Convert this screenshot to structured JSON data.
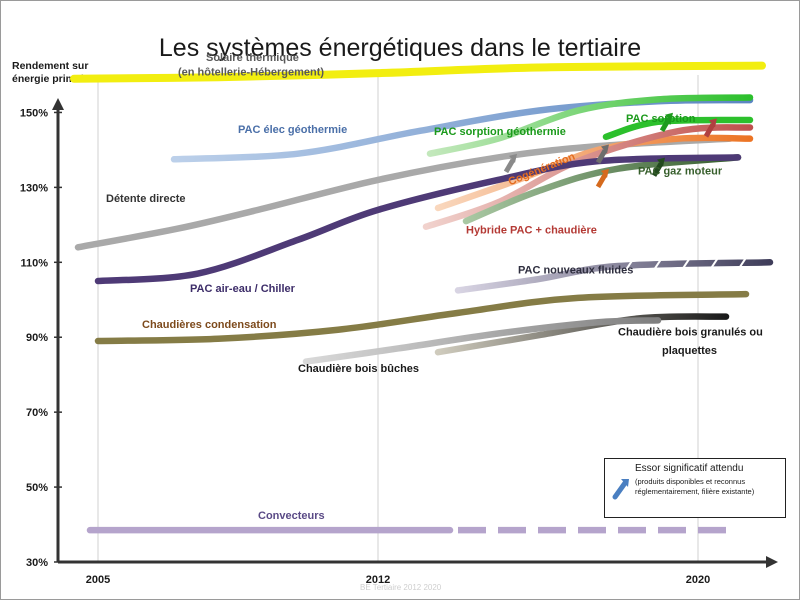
{
  "title": "Les systèmes énergétiques dans le tertiaire",
  "footer": "BE Tertiaire 2012 2020",
  "legend": {
    "title": "Essor significatif attendu",
    "subtitle": "(produits disponibles et reconnus réglementairement, filière existante)",
    "icon": "arrow-up-right-icon",
    "color": "#4a7fc1"
  },
  "chart_data": {
    "type": "line",
    "title": "Les systèmes énergétiques dans le tertiaire",
    "ylabel": "Rendement sur énergie primaire",
    "xlabel": "",
    "xlim": [
      2004,
      2021.8
    ],
    "ylim": [
      30,
      160
    ],
    "yticks": [
      30,
      50,
      70,
      90,
      110,
      130,
      150
    ],
    "ytick_labels": [
      "30%",
      "50%",
      "70%",
      "90%",
      "110%",
      "130%",
      "150%"
    ],
    "xticks": [
      2005,
      2012,
      2020
    ],
    "xtick_labels": [
      "2005",
      "2012",
      "2020"
    ],
    "grid": "vertical",
    "series": [
      {
        "name": "Solaire thermique (en hôtellerie-Hébergement)",
        "color": "#f2ee10",
        "x": [
          2004.4,
          2008,
          2012,
          2016,
          2021.6
        ],
        "y": [
          159,
          159.4,
          160.5,
          162,
          162.5
        ]
      },
      {
        "name": "PAC élec géothermie",
        "color": "#bcd0ea",
        "color2": "#5b86c2",
        "x": [
          2006.9,
          2010,
          2013,
          2016,
          2019,
          2021.3
        ],
        "y": [
          137.5,
          139,
          145,
          150.5,
          153,
          153.3
        ]
      },
      {
        "name": "PAC sorption géothermie",
        "color": "#c3e8bc",
        "color2": "#2cc02c",
        "x": [
          2013.3,
          2015,
          2017,
          2019,
          2021.3
        ],
        "y": [
          139,
          143,
          150.5,
          153.5,
          154
        ]
      },
      {
        "name": "PAC sorption",
        "color": "#2cc02c",
        "x": [
          2017.7,
          2019,
          2021.3
        ],
        "y": [
          143.5,
          147.5,
          148
        ]
      },
      {
        "name": "Détente directe",
        "color": "#a9a9a9",
        "x": [
          2004.5,
          2007,
          2009,
          2012,
          2015,
          2017.5,
          2020.8
        ],
        "y": [
          114,
          119,
          124,
          132,
          138,
          141,
          143
        ]
      },
      {
        "name": "Cogénération",
        "color": "#f9d7bd",
        "color2": "#ec7424",
        "x": [
          2013.5,
          2015.5,
          2017.5,
          2019.5,
          2021.3
        ],
        "y": [
          124.5,
          132,
          140,
          143,
          143
        ]
      },
      {
        "name": "Hybride PAC + chaudière",
        "color": "#f1d2cd",
        "color2": "#c0504d",
        "x": [
          2013.2,
          2015,
          2017,
          2019.5,
          2021.3
        ],
        "y": [
          119.5,
          126,
          137,
          145,
          146
        ]
      },
      {
        "name": "PAC gaz moteur",
        "color": "#a9c8a3",
        "color2": "#355b2d",
        "x": [
          2014.2,
          2016,
          2018,
          2021
        ],
        "y": [
          121,
          129,
          135,
          138
        ]
      },
      {
        "name": "PAC air-eau / Chiller",
        "color": "#4e3a76",
        "x": [
          2005,
          2007.5,
          2010,
          2012,
          2015,
          2017.5,
          2021
        ],
        "y": [
          105,
          107,
          116,
          124,
          132,
          137,
          138
        ]
      },
      {
        "name": "PAC nouveaux fluides",
        "color": "#d8d4e3",
        "color2": "#3f3d5a",
        "x": [
          2014,
          2016,
          2018,
          2021.8
        ],
        "y": [
          102.5,
          105.5,
          109,
          110
        ]
      },
      {
        "name": "Chaudières condensation",
        "color": "#857c46",
        "x": [
          2005,
          2008,
          2011,
          2014,
          2017,
          2021.2
        ],
        "y": [
          89,
          89.6,
          92,
          96.5,
          100.5,
          101.5
        ]
      },
      {
        "name": "Chaudière bois granulés ou plaquettes",
        "color": "#cfcbbd",
        "color2": "#1a1a1a",
        "x": [
          2013.5,
          2016,
          2018.5,
          2020.7
        ],
        "y": [
          86,
          90.5,
          95,
          95.5
        ]
      },
      {
        "name": "Chaudière bois bûches",
        "color": "#d9d9d9",
        "color2": "#7f7f7f",
        "x": [
          2010.2,
          2012.5,
          2015,
          2017.5,
          2019
        ],
        "y": [
          83.5,
          87,
          91,
          94,
          94.5
        ]
      },
      {
        "name": "Convecteurs",
        "color": "#b5a4cc",
        "x": [
          2004.8,
          2013.8
        ],
        "y": [
          38.5,
          38.5
        ],
        "dashed_to": 2021
      }
    ],
    "annotations": [
      {
        "text": "Solaire thermique",
        "x": 2007.7,
        "y": 163.7
      },
      {
        "text": "(en hôtellerie-Hébergement)",
        "x": 2007.0,
        "y": 159.8
      },
      {
        "text": "PAC élec géothermie",
        "x": 2008.5,
        "y": 144.5
      },
      {
        "text": "PAC sorption géothermie",
        "x": 2013.4,
        "y": 144.0
      },
      {
        "text": "PAC sorption",
        "x": 2018.2,
        "y": 147.5
      },
      {
        "text": "Détente directe",
        "x": 2005.2,
        "y": 126.1
      },
      {
        "text": "Cogénération",
        "x": 2015.3,
        "y": 130.5
      },
      {
        "text": "Hybride PAC + chaudière",
        "x": 2014.2,
        "y": 117.7
      },
      {
        "text": "PAC gaz moteur",
        "x": 2018.5,
        "y": 133.4
      },
      {
        "text": "PAC air-eau / Chiller",
        "x": 2007.3,
        "y": 102.1
      },
      {
        "text": "PAC nouveaux fluides",
        "x": 2015.5,
        "y": 107.0
      },
      {
        "text": "Chaudières condensation",
        "x": 2006.1,
        "y": 92.5
      },
      {
        "text": "Chaudière bois granulés ou",
        "x": 2018.0,
        "y": 90.4
      },
      {
        "text": "plaquettes",
        "x": 2019.1,
        "y": 85.5
      },
      {
        "text": "Chaudière bois bûches",
        "x": 2010.0,
        "y": 80.7
      },
      {
        "text": "Convecteurs",
        "x": 2009.0,
        "y": 41.5
      }
    ]
  }
}
